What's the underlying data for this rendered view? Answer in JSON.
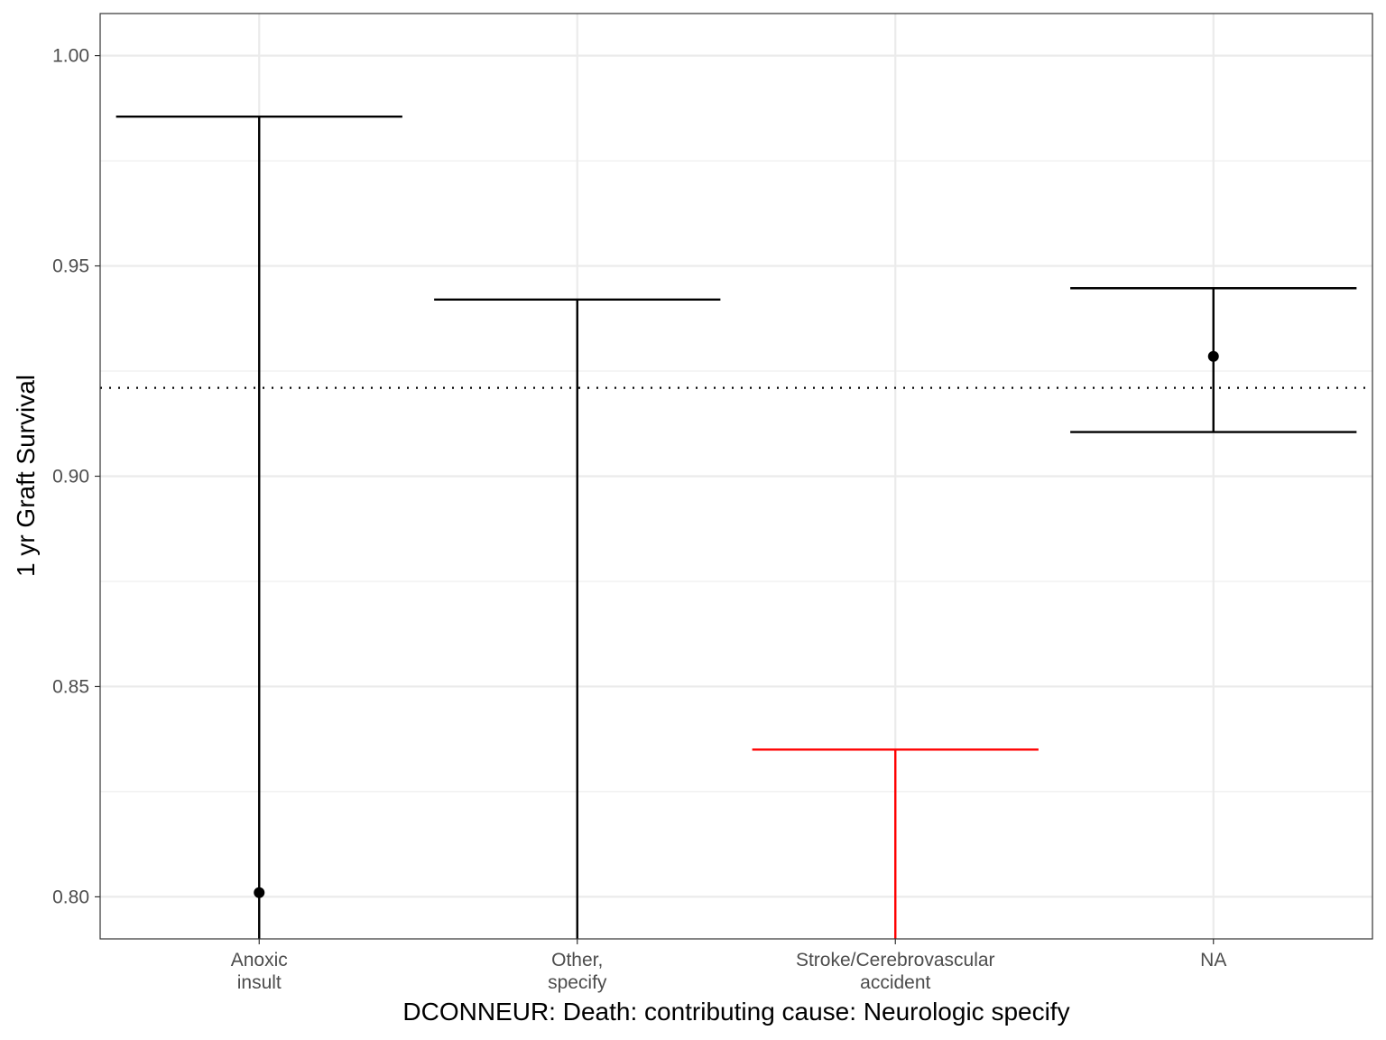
{
  "chart_data": {
    "type": "errorbar",
    "xlabel": "DCONNEUR: Death: contributing cause: Neurologic specify",
    "ylabel": "1 yr Graft Survival",
    "ylim": [
      0.79,
      1.01
    ],
    "yticks": [
      0.8,
      0.85,
      0.9,
      0.95,
      1.0
    ],
    "ytick_labels": [
      "0.80",
      "0.85",
      "0.90",
      "0.95",
      "1.00"
    ],
    "grid": true,
    "reference_line": {
      "y": 0.921,
      "style": "dotted",
      "color": "#000000"
    },
    "categories": [
      {
        "label": [
          "Anoxic",
          "insult"
        ],
        "point": 0.801,
        "lower": 0.79,
        "upper": 0.9855,
        "color": "#000000"
      },
      {
        "label": [
          "Other,",
          "specify"
        ],
        "point": null,
        "lower": 0.79,
        "upper": 0.942,
        "color": "#000000"
      },
      {
        "label": [
          "Stroke/Cerebrovascular",
          "accident"
        ],
        "point": null,
        "lower": 0.79,
        "upper": 0.835,
        "color": "#ff0000"
      },
      {
        "label": [
          "NA"
        ],
        "point": 0.9285,
        "lower": 0.9105,
        "upper": 0.9447,
        "color": "#000000"
      }
    ]
  }
}
